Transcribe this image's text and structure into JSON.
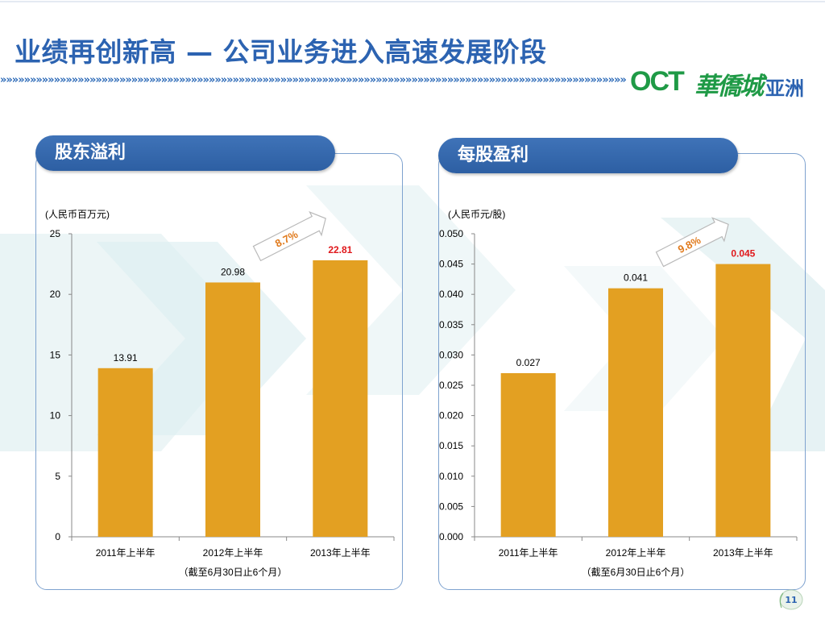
{
  "slide": {
    "title": "业绩再创新高 — 公司业务进入高速发展阶段",
    "page_number": "11",
    "chevron_strip": "»»»»»»»»»»»»»»»»»»»»»»»»»»»»»»»»»»»»»»»»»»»»»»»»»»»»»»»»»»»»»»»»»»»»»»»»»»»»»»»»»»»»»»»»»»»»»»»»»»»»»»»»»"
  },
  "logo": {
    "oct": "OCT",
    "chinese": "華僑城",
    "asia": "亚洲"
  },
  "colors": {
    "title_blue": "#2c63b1",
    "bar": "#e3a022",
    "highlight_red": "#e0181b",
    "growth_orange": "#e07a1c",
    "tab_blue": "#3a6db3"
  },
  "chart_data": [
    {
      "type": "bar",
      "title": "股东溢利",
      "unit_label": "(人民币百万元)",
      "categories": [
        "2011年上半年",
        "2012年上半年",
        "2013年上半年"
      ],
      "values": [
        13.91,
        20.98,
        22.81
      ],
      "value_labels": [
        "13.91",
        "20.98",
        "22.81"
      ],
      "highlight_index": 2,
      "ylim": [
        0,
        25
      ],
      "yticks": [
        0,
        5,
        10,
        15,
        20,
        25
      ],
      "ytick_labels": [
        "0",
        "5",
        "10",
        "15",
        "20",
        "25"
      ],
      "growth_label": "8.7%",
      "footnote": "（截至6月30日止6个月）"
    },
    {
      "type": "bar",
      "title": "每股盈利",
      "unit_label": "(人民币元/股)",
      "categories": [
        "2011年上半年",
        "2012年上半年",
        "2013年上半年"
      ],
      "values": [
        0.027,
        0.041,
        0.045
      ],
      "value_labels": [
        "0.027",
        "0.041",
        "0.045"
      ],
      "highlight_index": 2,
      "ylim": [
        0,
        0.05
      ],
      "yticks": [
        0,
        0.005,
        0.01,
        0.015,
        0.02,
        0.025,
        0.03,
        0.035,
        0.04,
        0.045,
        0.05
      ],
      "ytick_labels": [
        "0.000",
        "0.005",
        "0.010",
        "0.015",
        "0.020",
        "0.025",
        "0.030",
        "0.035",
        "0.040",
        "0.045",
        "0.050"
      ],
      "growth_label": "9.8%",
      "footnote": "（截至6月30日止6个月）"
    }
  ]
}
